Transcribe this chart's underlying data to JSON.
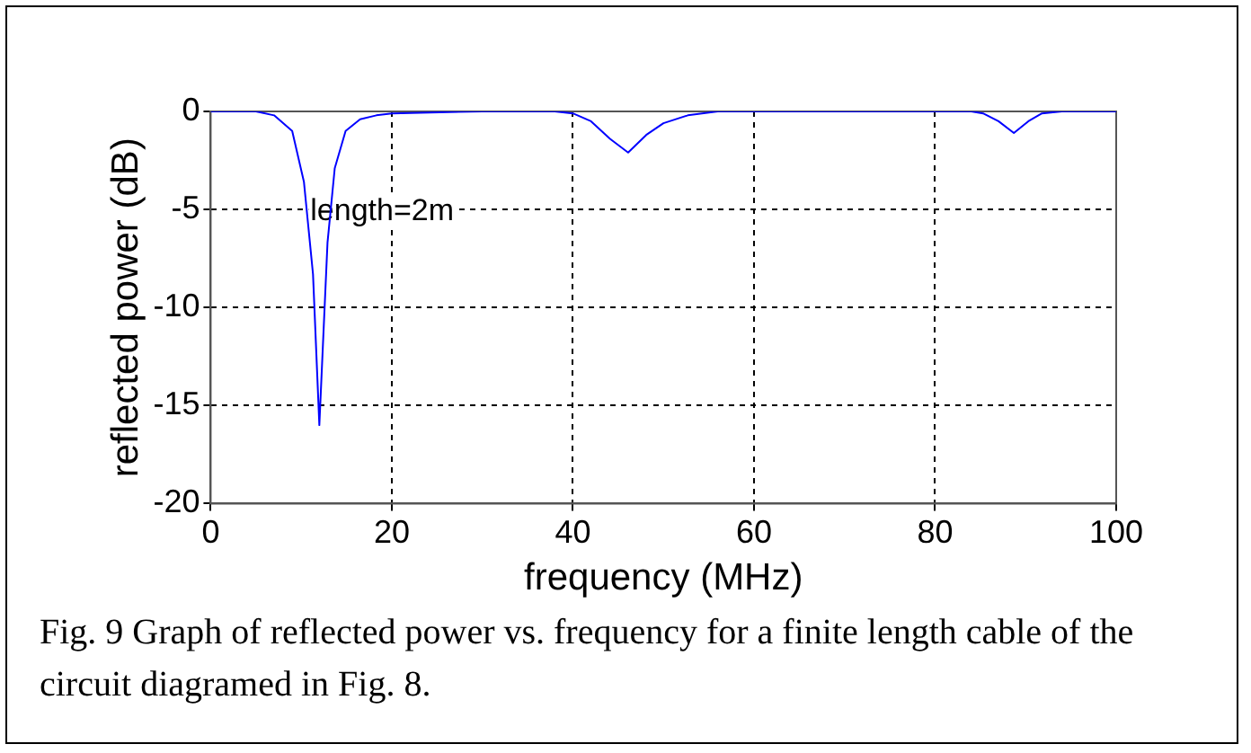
{
  "chart_data": {
    "type": "line",
    "xlabel": "frequency (MHz)",
    "ylabel": "reflected power (dB)",
    "x": [
      0,
      5,
      7,
      9,
      10.3,
      11.3,
      12,
      12.9,
      13.7,
      14.9,
      16.5,
      18.3,
      20,
      30,
      38,
      40,
      42,
      44.1,
      46.1,
      48.1,
      50,
      52.7,
      56,
      70,
      84,
      85.3,
      87,
      88.7,
      90.3,
      91.8,
      94,
      100
    ],
    "series": [
      {
        "color": "#0000ff",
        "values": [
          0,
          0,
          -0.2,
          -1,
          -3.6,
          -8.3,
          -16,
          -6.7,
          -2.9,
          -1,
          -0.4,
          -0.2,
          -0.1,
          0,
          0,
          -0.1,
          -0.5,
          -1.4,
          -2.1,
          -1.2,
          -0.6,
          -0.2,
          0,
          0,
          0,
          -0.1,
          -0.5,
          -1.1,
          -0.5,
          -0.1,
          0,
          0
        ]
      }
    ],
    "xlim": [
      0,
      100
    ],
    "xticks": [
      0,
      20,
      40,
      60,
      80,
      100
    ],
    "ylim": [
      -20,
      0
    ],
    "yticks": [
      -20,
      -15,
      -10,
      -5,
      0
    ],
    "grid": true,
    "marker": "none",
    "line_style": "solid",
    "annotations": [
      "length=2m",
      "Fig. 9 Graph of reflected power vs. frequency for a finite length cable of the circuit diagramed in Fig. 8."
    ]
  }
}
